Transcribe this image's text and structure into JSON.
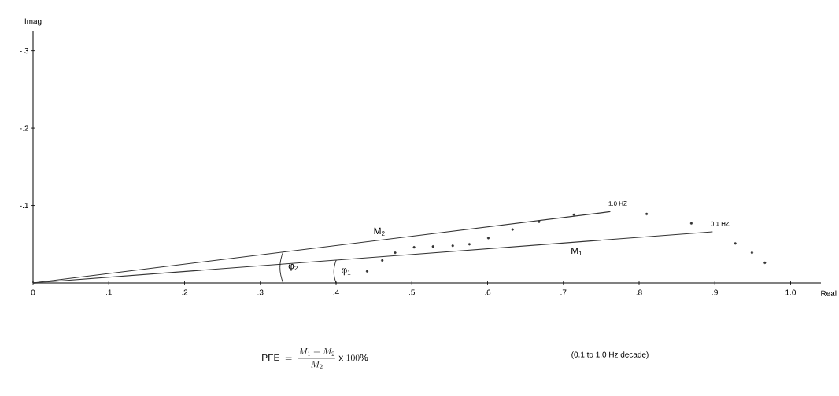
{
  "chart_data": {
    "type": "scatter",
    "xlabel": "Real",
    "ylabel": "Imag",
    "xlim": [
      0,
      1.04
    ],
    "ylim": [
      0,
      -0.325
    ],
    "xticks": [
      {
        "value": 0,
        "label": "0"
      },
      {
        "value": 0.1,
        "label": ".1"
      },
      {
        "value": 0.2,
        "label": ".2"
      },
      {
        "value": 0.3,
        "label": ".3"
      },
      {
        "value": 0.4,
        "label": ".4"
      },
      {
        "value": 0.5,
        "label": ".5"
      },
      {
        "value": 0.6,
        "label": ".6"
      },
      {
        "value": 0.7,
        "label": ".7"
      },
      {
        "value": 0.8,
        "label": ".8"
      },
      {
        "value": 0.9,
        "label": ".9"
      },
      {
        "value": 1.0,
        "label": "1.0"
      }
    ],
    "yticks": [
      {
        "value": -0.1,
        "label": "-.1"
      },
      {
        "value": -0.2,
        "label": "-.2"
      },
      {
        "value": -0.3,
        "label": "-.3"
      }
    ],
    "series": [
      {
        "name": "M$_{1}$",
        "type": "line",
        "marker": "none",
        "color": "#333333",
        "x": [
          0,
          0.897
        ],
        "values": [
          0,
          -0.066
        ]
      },
      {
        "name": "M$_{2}$",
        "type": "line",
        "marker": "none",
        "color": "#333333",
        "x": [
          0,
          0.762
        ],
        "values": [
          0,
          -0.092
        ]
      },
      {
        "marker": "circle",
        "color": "#333333",
        "x": [
          0.441,
          0.461,
          0.478,
          0.503,
          0.528,
          0.554,
          0.576,
          0.601,
          0.633,
          0.668,
          0.714,
          0.81,
          0.869,
          0.927,
          0.949,
          0.966
        ],
        "values": [
          -0.015,
          -0.029,
          -0.039,
          -0.046,
          -0.047,
          -0.048,
          -0.05,
          -0.058,
          -0.069,
          -0.079,
          -0.088,
          -0.089,
          -0.077,
          -0.051,
          -0.039,
          -0.026
        ]
      }
    ],
    "annotations": [
      "\\mathrm{PFE} \\;=\\; \\frac{M_1 - M_2}{M_2} \\;\\mathrm{x}\\; 100\\%",
      "(0.1 to 1.0 Hz decade)",
      {
        "text": "1.0 HZ",
        "x": 0.762,
        "y": -0.092
      },
      {
        "text": "0.1 HZ",
        "x": 0.897,
        "y": -0.066
      },
      {
        "text": "φ$_{2}$",
        "x": 0.33,
        "y": -0.04
      },
      {
        "text": "φ$_{1}$",
        "x": 0.4,
        "y": -0.029
      }
    ]
  }
}
